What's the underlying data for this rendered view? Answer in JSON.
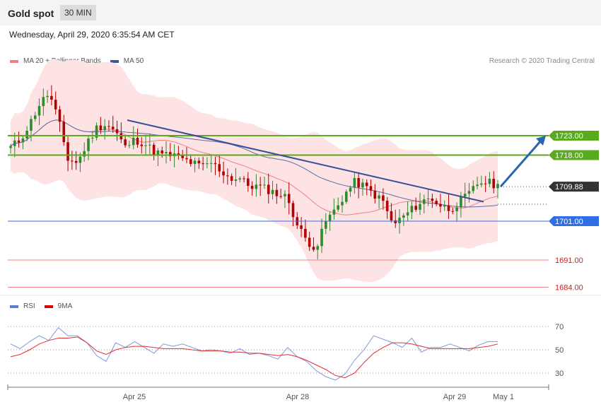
{
  "header": {
    "title": "Gold spot",
    "timeframe": "30 MIN"
  },
  "datetime": "Wednesday, April 29, 2020 6:35:54 AM CET",
  "legend": {
    "ma20_label": "MA 20 + Bollinger Bands",
    "ma50_label": "MA 50",
    "rsi_label": "RSI",
    "rsi_ma_label": "9MA"
  },
  "credit": "Research © 2020 Trading Central",
  "colors": {
    "bullish": "#2e8b2e",
    "bearish": "#b30000",
    "bollinger_fill": "#fde3e3",
    "ma20": "#f08080",
    "ma50": "#5a6fa8",
    "trendline": "#3a4f97",
    "resistance": "#5aaa1e",
    "support_blue": "#2f6fe6",
    "support_red": "#f08080",
    "price_tag": "#333333",
    "rsi": "#7f98d8",
    "rsi_ma": "#e03030",
    "forecast_arrow": "#2a66b0"
  },
  "chart_data": [
    {
      "type": "candlestick",
      "title": "Gold spot",
      "timeframe": "30 MIN",
      "x_ticks": [
        "Apr 25",
        "Apr 28",
        "Apr 29",
        "May 1"
      ],
      "ylim": [
        1680,
        1740
      ],
      "levels": [
        {
          "value": 1723.0,
          "label": "1723.00",
          "kind": "resistance"
        },
        {
          "value": 1718.0,
          "label": "1718.00",
          "kind": "resistance"
        },
        {
          "value": 1709.88,
          "label": "1709.88",
          "kind": "last_price"
        },
        {
          "value": 1701.0,
          "label": "1701.00",
          "kind": "support"
        },
        {
          "value": 1691.0,
          "label": "1691.00",
          "kind": "support"
        },
        {
          "value": 1684.0,
          "label": "1684.00",
          "kind": "support"
        }
      ],
      "price_path": [
        1720,
        1722,
        1726,
        1731,
        1734,
        1727,
        1717,
        1716,
        1721,
        1725,
        1726,
        1724,
        1720,
        1722,
        1721,
        1719,
        1718,
        1718,
        1717,
        1716,
        1715,
        1716,
        1714,
        1712,
        1712,
        1710,
        1710,
        1709,
        1708,
        1707,
        1700,
        1696,
        1694,
        1701,
        1704,
        1708,
        1711,
        1710,
        1708,
        1706,
        1700,
        1702,
        1704,
        1706,
        1707,
        1705,
        1704,
        1706,
        1708,
        1711,
        1711,
        1710
      ],
      "trendline": {
        "from": 1727,
        "to": 1706
      },
      "forecast": {
        "from": 1709.88,
        "to": 1723.0
      }
    },
    {
      "type": "line",
      "title": "RSI",
      "yticks": [
        30,
        50,
        70
      ],
      "series": [
        {
          "name": "RSI",
          "values": [
            55,
            51,
            57,
            62,
            58,
            69,
            62,
            62,
            56,
            45,
            40,
            56,
            52,
            57,
            52,
            47,
            55,
            53,
            55,
            52,
            49,
            50,
            49,
            47,
            51,
            46,
            47,
            45,
            42,
            52,
            44,
            40,
            32,
            27,
            24,
            29,
            41,
            50,
            62,
            59,
            56,
            52,
            60,
            48,
            52,
            52,
            55,
            52,
            49,
            54,
            57,
            57
          ]
        },
        {
          "name": "9MA",
          "values": [
            44,
            46,
            50,
            55,
            58,
            60,
            60,
            61,
            56,
            49,
            46,
            50,
            52,
            53,
            53,
            52,
            51,
            51,
            51,
            50,
            49,
            49,
            49,
            48,
            48,
            47,
            47,
            46,
            45,
            46,
            44,
            41,
            37,
            33,
            28,
            26,
            30,
            39,
            47,
            52,
            56,
            56,
            55,
            53,
            51,
            51,
            51,
            51,
            51,
            52,
            53,
            55
          ]
        }
      ]
    }
  ]
}
